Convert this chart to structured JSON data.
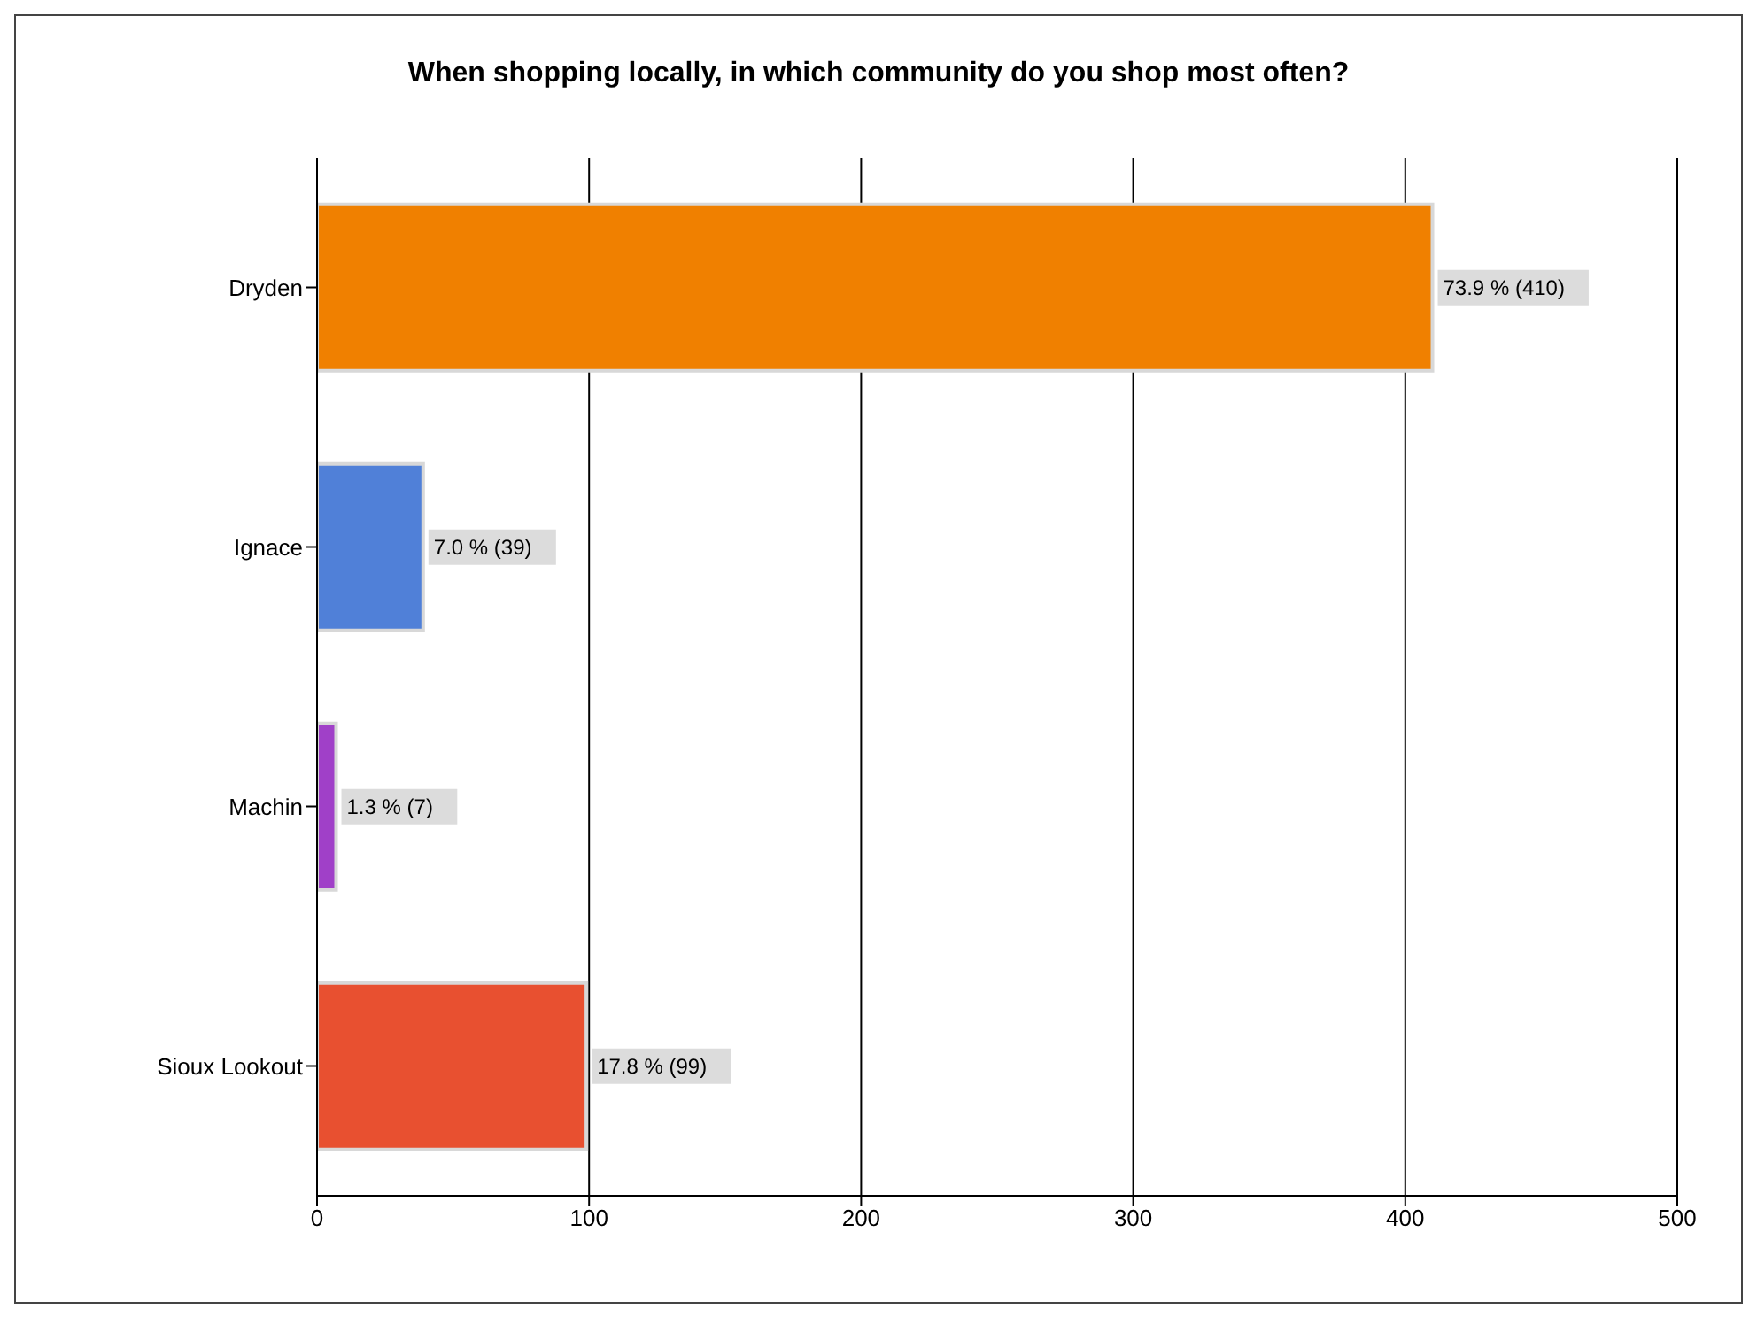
{
  "chart_data": {
    "type": "bar",
    "title": "When shopping locally, in which community do you shop most often?",
    "orientation": "horizontal",
    "categories": [
      "Dryden",
      "Ignace",
      "Machin",
      "Sioux Lookout"
    ],
    "values": [
      410,
      39,
      7,
      99
    ],
    "colors": [
      "#f08000",
      "#5080d8",
      "#a040c8",
      "#e85030"
    ],
    "value_labels": [
      "73.9 % (410)",
      "7.0 % (39)",
      "1.3 % (7)",
      "17.8 % (99)"
    ],
    "xlim": [
      0,
      500
    ],
    "xticks": [
      0,
      100,
      200,
      300,
      400,
      500
    ],
    "grid": "x",
    "legend": false
  }
}
